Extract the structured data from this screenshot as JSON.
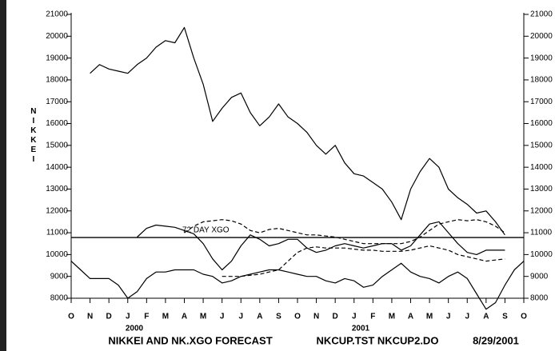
{
  "chart_data": {
    "type": "line",
    "y_label": "NIKKEI",
    "annotation": "72 DAY XGO",
    "reference_line": 10780,
    "footer": [
      "NIKKEI AND NK.XGO FORECAST",
      "NKCUP.TST NKCUP2.DO",
      "8/29/2001"
    ],
    "year_labels": [
      "2000",
      "2001"
    ],
    "xlim": [
      0,
      24
    ],
    "xticks": [
      {
        "value": 0,
        "label": "O"
      },
      {
        "value": 1,
        "label": "N"
      },
      {
        "value": 2,
        "label": "D"
      },
      {
        "value": 3,
        "label": "J"
      },
      {
        "value": 4,
        "label": "F"
      },
      {
        "value": 5,
        "label": "M"
      },
      {
        "value": 6,
        "label": "A"
      },
      {
        "value": 7,
        "label": "M"
      },
      {
        "value": 8,
        "label": "J"
      },
      {
        "value": 9,
        "label": "J"
      },
      {
        "value": 10,
        "label": "A"
      },
      {
        "value": 11,
        "label": "S"
      },
      {
        "value": 12,
        "label": "O"
      },
      {
        "value": 13,
        "label": "N"
      },
      {
        "value": 14,
        "label": "D"
      },
      {
        "value": 15,
        "label": "J"
      },
      {
        "value": 16,
        "label": "F"
      },
      {
        "value": 17,
        "label": "M"
      },
      {
        "value": 18,
        "label": "A"
      },
      {
        "value": 19,
        "label": "M"
      },
      {
        "value": 20,
        "label": "J"
      },
      {
        "value": 21,
        "label": "J"
      },
      {
        "value": 22,
        "label": "A"
      },
      {
        "value": 23,
        "label": "S"
      },
      {
        "value": 24,
        "label": "O"
      }
    ],
    "ylim": [
      8000,
      21000
    ],
    "yticks": [
      8000,
      9000,
      10000,
      11000,
      12000,
      13000,
      14000,
      15000,
      16000,
      17000,
      18000,
      19000,
      20000,
      21000
    ],
    "x": [
      0,
      0.5,
      1,
      1.5,
      2,
      2.5,
      3,
      3.5,
      4,
      4.5,
      5,
      5.5,
      6,
      6.5,
      7,
      7.5,
      8,
      8.5,
      9,
      9.5,
      10,
      10.5,
      11,
      11.5,
      12,
      12.5,
      13,
      13.5,
      14,
      14.5,
      15,
      15.5,
      16,
      16.5,
      17,
      17.5,
      18,
      18.5,
      19,
      19.5,
      20,
      20.5,
      21,
      21.5,
      22,
      22.5,
      23,
      23.5,
      24
    ],
    "series": [
      {
        "color": "#000000",
        "dash": false,
        "values": [
          null,
          null,
          18300,
          18700,
          18500,
          18400,
          18300,
          18700,
          19000,
          19500,
          19800,
          19700,
          20400,
          19000,
          17800,
          16100,
          16700,
          17200,
          17400,
          16500,
          15900,
          16300,
          16900,
          16300,
          16000,
          15600,
          15000,
          14600,
          15000,
          14200,
          13700,
          13600,
          13300,
          13000,
          12400,
          11600,
          13000,
          13800,
          14400,
          14000,
          13000,
          12600,
          12300,
          11900,
          12000,
          11500,
          10900,
          null,
          null
        ]
      },
      {
        "color": "#000000",
        "dash": false,
        "values": [
          null,
          null,
          null,
          null,
          null,
          null,
          null,
          10800,
          11200,
          11350,
          11300,
          11250,
          11100,
          10950,
          10500,
          9800,
          9300,
          9700,
          10400,
          10900,
          10700,
          10400,
          10500,
          10700,
          10700,
          10300,
          10100,
          10200,
          10400,
          10500,
          10400,
          10300,
          10400,
          10500,
          10500,
          10200,
          10400,
          10900,
          11400,
          11500,
          11000,
          10500,
          10100,
          10000,
          10200,
          10200,
          10200,
          null,
          null
        ]
      },
      {
        "color": "#000000",
        "dash": true,
        "values": [
          null,
          null,
          null,
          null,
          null,
          null,
          null,
          null,
          null,
          null,
          null,
          null,
          11000,
          11300,
          11500,
          11550,
          11600,
          11550,
          11400,
          11100,
          11000,
          11150,
          11200,
          11100,
          11000,
          10900,
          10900,
          10850,
          10800,
          10700,
          10600,
          10500,
          10500,
          10500,
          10500,
          10500,
          10600,
          10800,
          11100,
          11400,
          11500,
          11600,
          11550,
          11600,
          11500,
          11300,
          11000,
          null,
          null
        ]
      },
      {
        "color": "#000000",
        "dash": true,
        "values": [
          null,
          null,
          null,
          null,
          null,
          null,
          null,
          null,
          null,
          null,
          null,
          null,
          null,
          null,
          null,
          null,
          9000,
          9000,
          9000,
          9050,
          9100,
          9200,
          9300,
          9700,
          10100,
          10300,
          10350,
          10300,
          10300,
          10300,
          10250,
          10200,
          10200,
          10150,
          10150,
          10150,
          10200,
          10300,
          10400,
          10300,
          10200,
          10000,
          9900,
          9800,
          9700,
          9750,
          9800,
          null,
          null
        ]
      },
      {
        "color": "#000000",
        "dash": false,
        "values": [
          9700,
          9300,
          8900,
          8900,
          8900,
          8600,
          8000,
          8300,
          8900,
          9200,
          9200,
          9300,
          9300,
          9300,
          9100,
          9000,
          8700,
          8800,
          9000,
          9100,
          9200,
          9300,
          9300,
          9200,
          9100,
          9000,
          9000,
          8800,
          8700,
          8900,
          8800,
          8500,
          8600,
          9000,
          9300,
          9600,
          9200,
          9000,
          8900,
          8700,
          9000,
          9200,
          8900,
          8200,
          7500,
          7800,
          8600,
          9300,
          9700
        ]
      }
    ]
  }
}
